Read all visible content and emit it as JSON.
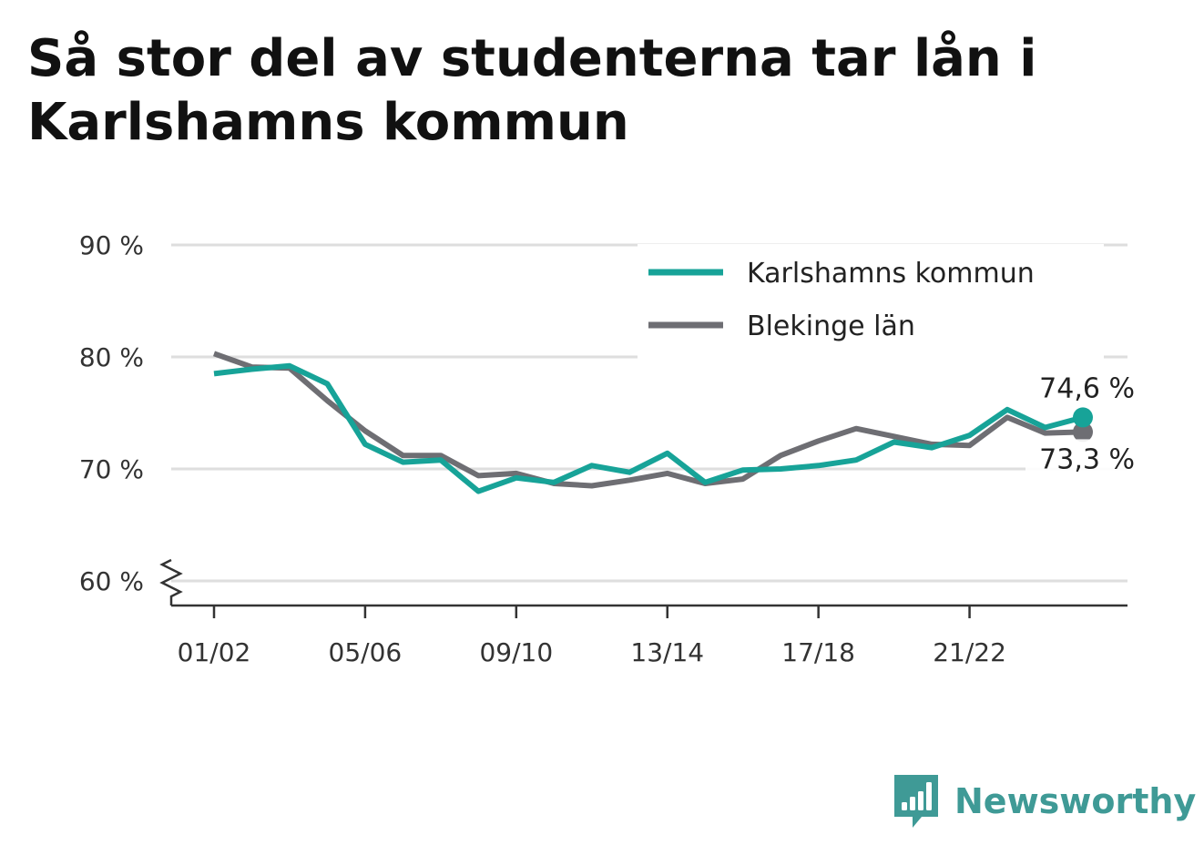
{
  "title": "Så stor del av studenterna tar lån i Karlshamns kommun",
  "brand": {
    "name": "Newsworthy",
    "icon": "newsworthy-logo-icon",
    "color": "#3f9a96"
  },
  "chart_data": {
    "type": "line",
    "title": "Så stor del av studenterna tar lån i Karlshamns kommun",
    "xlabel": "",
    "ylabel": "",
    "x": [
      "01/02",
      "02/03",
      "03/04",
      "04/05",
      "05/06",
      "06/07",
      "07/08",
      "08/09",
      "09/10",
      "10/11",
      "11/12",
      "12/13",
      "13/14",
      "14/15",
      "15/16",
      "16/17",
      "17/18",
      "18/19",
      "19/20",
      "20/21",
      "21/22",
      "22/23",
      "23/24",
      "24/25"
    ],
    "xticks": [
      "01/02",
      "05/06",
      "09/10",
      "13/14",
      "17/18",
      "21/22"
    ],
    "yticks": [
      60,
      70,
      80,
      90
    ],
    "ytick_labels": [
      "60 %",
      "70 %",
      "80 %",
      "90 %"
    ],
    "ylim": [
      60,
      90
    ],
    "axis_break": true,
    "grid": true,
    "legend_position": "top-right",
    "series": [
      {
        "name": "Karlshamns kommun",
        "color": "#17a398",
        "values": [
          78.5,
          78.9,
          79.2,
          77.6,
          72.2,
          70.6,
          70.8,
          68.0,
          69.2,
          68.8,
          70.3,
          69.7,
          71.4,
          68.8,
          69.9,
          70.0,
          70.3,
          70.8,
          72.4,
          71.9,
          73.0,
          75.3,
          73.7,
          74.6
        ],
        "end_label": "74,6 %"
      },
      {
        "name": "Blekinge län",
        "color": "#6e6e73",
        "values": [
          80.3,
          79.1,
          79.0,
          76.1,
          73.4,
          71.2,
          71.2,
          69.4,
          69.6,
          68.7,
          68.5,
          69.0,
          69.6,
          68.7,
          69.1,
          71.2,
          72.5,
          73.6,
          72.9,
          72.2,
          72.1,
          74.6,
          73.2,
          73.3
        ],
        "end_label": "73,3 %"
      }
    ]
  }
}
